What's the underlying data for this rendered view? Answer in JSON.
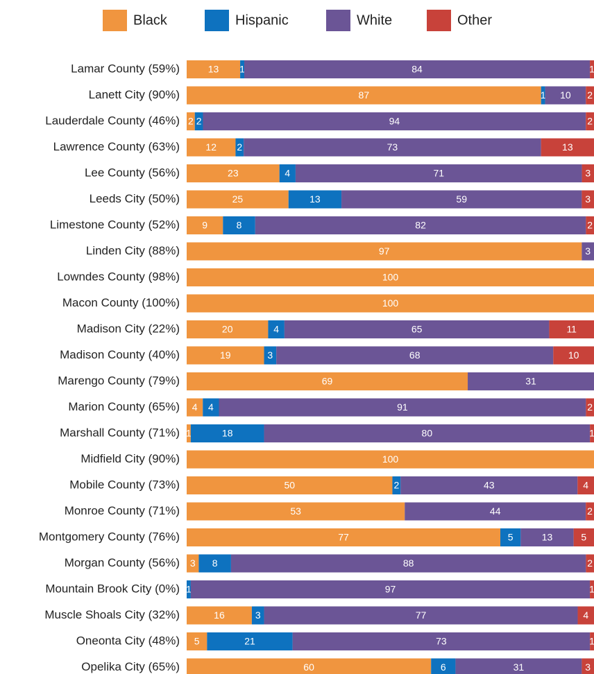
{
  "chart_data": {
    "type": "stacked-bar-100",
    "series": [
      {
        "name": "Black",
        "color": "#f0953f",
        "values": [
          13,
          87,
          2,
          12,
          23,
          25,
          9,
          97,
          100,
          100,
          20,
          19,
          69,
          4,
          1,
          100,
          50,
          53,
          77,
          3,
          null,
          16,
          5,
          60
        ]
      },
      {
        "name": "Hispanic",
        "color": "#0e72bf",
        "values": [
          1,
          1,
          2,
          2,
          4,
          13,
          8,
          null,
          null,
          null,
          4,
          3,
          null,
          4,
          18,
          null,
          2,
          null,
          5,
          8,
          1,
          3,
          21,
          6
        ]
      },
      {
        "name": "White",
        "color": "#6b5596",
        "values": [
          84,
          10,
          94,
          73,
          71,
          59,
          82,
          3,
          null,
          null,
          65,
          68,
          31,
          91,
          80,
          null,
          43,
          44,
          13,
          88,
          97,
          77,
          73,
          31
        ]
      },
      {
        "name": "Other",
        "color": "#c8423a",
        "values": [
          1,
          2,
          2,
          13,
          3,
          3,
          2,
          null,
          null,
          null,
          11,
          10,
          null,
          2,
          1,
          null,
          4,
          2,
          5,
          2,
          1,
          4,
          1,
          3
        ]
      }
    ],
    "categories": [
      "Lamar County (59%)",
      "Lanett City (90%)",
      "Lauderdale County (46%)",
      "Lawrence County (63%)",
      "Lee County (56%)",
      "Leeds City (50%)",
      "Limestone County (52%)",
      "Linden City (88%)",
      "Lowndes County (98%)",
      "Macon County (100%)",
      "Madison City (22%)",
      "Madison County (40%)",
      "Marengo County (79%)",
      "Marion County (65%)",
      "Marshall County (71%)",
      "Midfield City (90%)",
      "Mobile County (73%)",
      "Monroe County (71%)",
      "Montgomery County (76%)",
      "Morgan County (56%)",
      "Mountain Brook City (0%)",
      "Muscle Shoals City (32%)",
      "Oneonta City (48%)",
      "Opelika City (65%)"
    ]
  }
}
